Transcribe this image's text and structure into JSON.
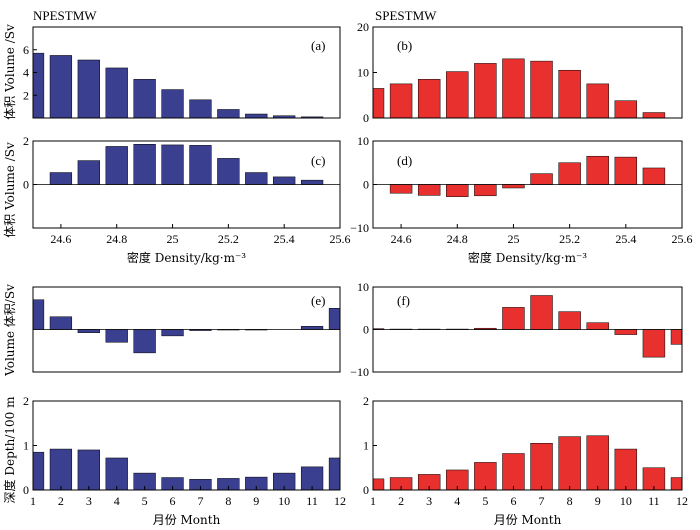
{
  "chart_data": [
    {
      "type": "bar",
      "panel_label": "(a)",
      "title": "NPESTMW",
      "x": [
        24.5,
        24.6,
        24.7,
        24.8,
        24.9,
        25.0,
        25.1,
        25.2,
        25.3,
        25.4,
        25.5
      ],
      "values": [
        5.7,
        5.5,
        5.1,
        4.4,
        3.4,
        2.5,
        1.6,
        0.75,
        0.35,
        0.2,
        0.1
      ],
      "ylim": [
        0,
        8
      ],
      "yticks": [
        "2",
        "4",
        "6"
      ],
      "xlim": [
        24.5,
        25.6
      ],
      "color": "#3a3f8f"
    },
    {
      "type": "bar",
      "panel_label": "(b)",
      "title": "SPESTMW",
      "x": [
        24.5,
        24.6,
        24.7,
        24.8,
        24.9,
        25.0,
        25.1,
        25.2,
        25.3,
        25.4,
        25.5
      ],
      "values": [
        6.5,
        7.5,
        8.5,
        10.2,
        12.0,
        13.0,
        12.5,
        10.5,
        7.5,
        3.8,
        1.2
      ],
      "ylim": [
        0,
        20
      ],
      "yticks": [
        "0",
        "10",
        "20"
      ],
      "xlim": [
        24.5,
        25.6
      ],
      "color": "#e8312e"
    },
    {
      "type": "bar",
      "panel_label": "(c)",
      "x": [
        24.5,
        24.6,
        24.7,
        24.8,
        24.9,
        25.0,
        25.1,
        25.2,
        25.3,
        25.4,
        25.5
      ],
      "values": [
        0,
        0.55,
        1.1,
        1.75,
        1.85,
        1.82,
        1.8,
        1.2,
        0.55,
        0.35,
        0.2
      ],
      "ylim": [
        -2,
        2
      ],
      "yticks": [
        "2",
        "0"
      ],
      "xlim": [
        24.5,
        25.6
      ],
      "xticks": [
        "24.6",
        "24.8",
        "25",
        "25.2",
        "25.4",
        "25.6"
      ],
      "xlabel": "密度 Density/kg·m⁻³",
      "color": "#3a3f8f"
    },
    {
      "type": "bar",
      "panel_label": "(d)",
      "x": [
        24.5,
        24.6,
        24.7,
        24.8,
        24.9,
        25.0,
        25.1,
        25.2,
        25.3,
        25.4,
        25.5
      ],
      "values": [
        0,
        -2.0,
        -2.5,
        -2.8,
        -2.6,
        -0.8,
        2.5,
        5.0,
        6.5,
        6.3,
        3.8
      ],
      "ylim": [
        -10,
        10
      ],
      "yticks": [
        "10",
        "0",
        "−10"
      ],
      "xlim": [
        24.5,
        25.6
      ],
      "xticks": [
        "24.6",
        "24.8",
        "25",
        "25.2",
        "25.4",
        "25.6"
      ],
      "xlabel": "密度 Density/kg·m⁻³",
      "color": "#e8312e"
    },
    {
      "type": "bar",
      "panel_label": "(e)",
      "x": [
        1,
        2,
        3,
        4,
        5,
        6,
        7,
        8,
        9,
        10,
        11,
        12
      ],
      "values": [
        2.8,
        1.2,
        -0.3,
        -1.2,
        -2.2,
        -0.6,
        -0.1,
        -0.05,
        -0.05,
        0,
        0.3,
        2.0
      ],
      "ylim": [
        -4,
        4
      ],
      "xlim": [
        1,
        12
      ],
      "color": "#3a3f8f"
    },
    {
      "type": "bar",
      "panel_label": "(f)",
      "x": [
        1,
        2,
        3,
        4,
        5,
        6,
        7,
        8,
        9,
        10,
        11,
        12
      ],
      "values": [
        0.2,
        0.1,
        0.1,
        0.1,
        0.3,
        5.2,
        8.0,
        4.2,
        1.6,
        -1.2,
        -6.5,
        -3.5
      ],
      "ylim": [
        -10,
        10
      ],
      "yticks": [
        "10",
        "0",
        "−10"
      ],
      "xlim": [
        1,
        12
      ],
      "color": "#e8312e"
    },
    {
      "type": "bar",
      "x": [
        1,
        2,
        3,
        4,
        5,
        6,
        7,
        8,
        9,
        10,
        11,
        12
      ],
      "values": [
        0.85,
        0.92,
        0.9,
        0.72,
        0.38,
        0.28,
        0.24,
        0.26,
        0.29,
        0.38,
        0.52,
        0.72
      ],
      "ylim": [
        0,
        2
      ],
      "yticks": [
        "2",
        "1",
        "0"
      ],
      "xlim": [
        1,
        12
      ],
      "xticks": [
        "1",
        "2",
        "3",
        "4",
        "5",
        "6",
        "7",
        "8",
        "9",
        "10",
        "11",
        "12"
      ],
      "xlabel": "月份 Month",
      "color": "#3a3f8f"
    },
    {
      "type": "bar",
      "x": [
        1,
        2,
        3,
        4,
        5,
        6,
        7,
        8,
        9,
        10,
        11,
        12
      ],
      "values": [
        0.25,
        0.28,
        0.35,
        0.45,
        0.62,
        0.82,
        1.05,
        1.2,
        1.22,
        0.92,
        0.5,
        0.28
      ],
      "ylim": [
        0,
        2
      ],
      "yticks": [
        "2",
        "1",
        "0"
      ],
      "xlim": [
        1,
        12
      ],
      "xticks": [
        "1",
        "2",
        "3",
        "4",
        "5",
        "6",
        "7",
        "8",
        "9",
        "10",
        "11",
        "12"
      ],
      "xlabel": "月份 Month",
      "color": "#e8312e"
    }
  ],
  "ylabels": {
    "volume_top": "体积 Volume /Sv",
    "volume_mid": "体积 Volume /Sv",
    "volume_month": "Volume 体积/Sv",
    "depth_month": "深度 Depth/100 m"
  }
}
